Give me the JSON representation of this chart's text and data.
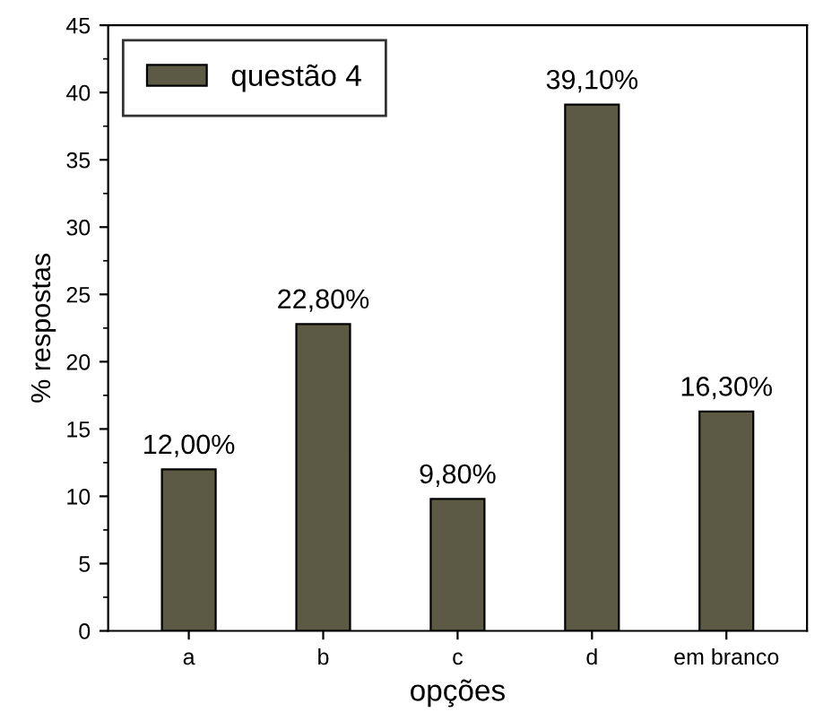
{
  "chart_data": {
    "type": "bar",
    "xlabel": "opções",
    "ylabel": "% respostas",
    "categories": [
      "a",
      "b",
      "c",
      "d",
      "em branco"
    ],
    "series": [
      {
        "name": "questão 4",
        "color": "#5c5a44",
        "values": [
          12.0,
          22.8,
          9.8,
          39.1,
          16.3
        ],
        "value_labels": [
          "12,00%",
          "22,80%",
          "9,80%",
          "39,10%",
          "16,30%"
        ]
      }
    ],
    "ylim": [
      0,
      45
    ],
    "yticks": [
      0,
      5,
      10,
      15,
      20,
      25,
      30,
      35,
      40,
      45
    ],
    "legend": "top left",
    "grid": false
  }
}
